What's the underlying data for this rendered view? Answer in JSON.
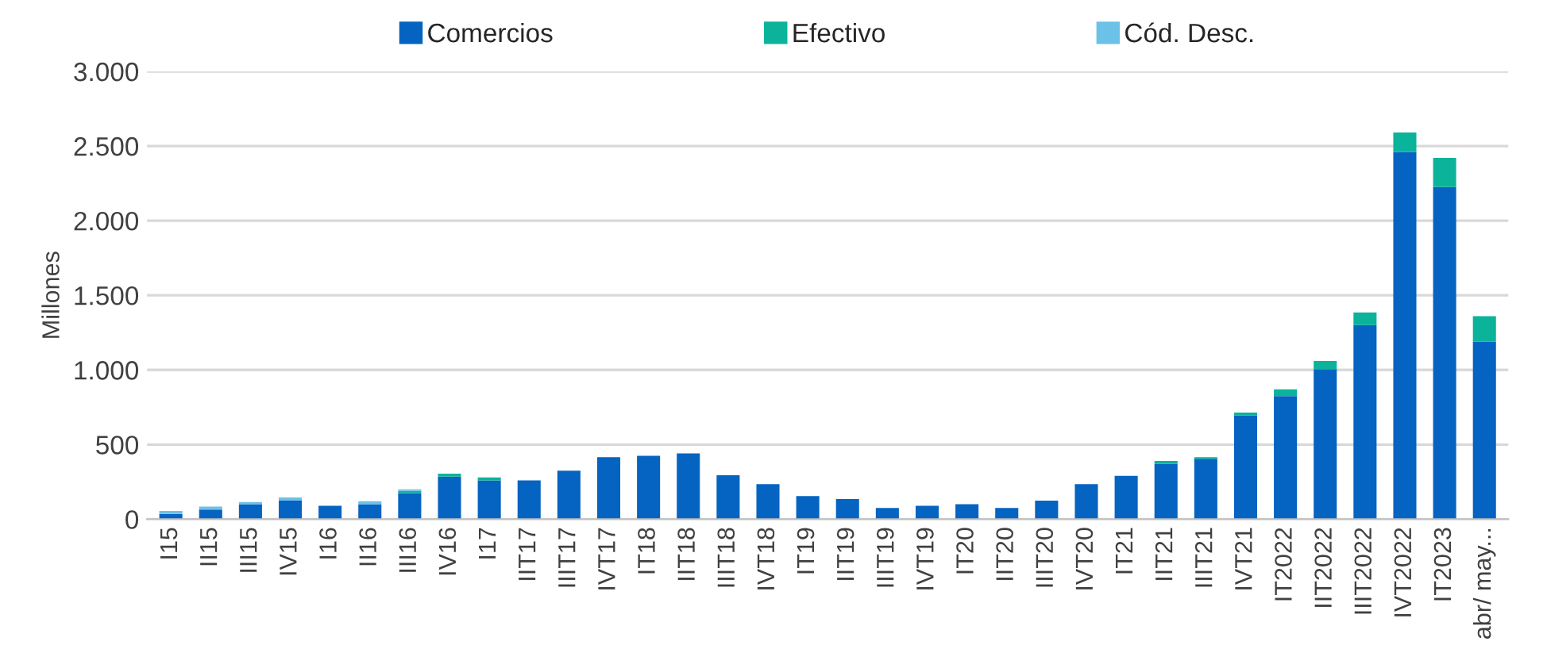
{
  "chart_data": {
    "type": "bar",
    "stacked": true,
    "ylabel": "Millones",
    "categories": [
      "I15",
      "II15",
      "III15",
      "IV15",
      "I16",
      "II16",
      "III16",
      "IV16",
      "I17",
      "IIT17",
      "IIIT17",
      "IVT17",
      "IT18",
      "IIT18",
      "IIIT18",
      "IVT18",
      "IT19",
      "IIT19",
      "IIIT19",
      "IVT19",
      "IT20",
      "IIT20",
      "IIIT20",
      "IVT20",
      "IT21",
      "IIT21",
      "IIIT21",
      "IVT21",
      "IT2022",
      "IIT2022",
      "IIIT2022",
      "IVT2022",
      "IT2023",
      "abr/ may..."
    ],
    "series": [
      {
        "name": "Comercios",
        "color": "#0563c1",
        "values": [
          35,
          65,
          100,
          125,
          90,
          100,
          175,
          285,
          260,
          260,
          325,
          415,
          425,
          440,
          295,
          235,
          155,
          135,
          75,
          90,
          100,
          75,
          125,
          235,
          290,
          370,
          405,
          695,
          825,
          1005,
          1300,
          2460,
          2225,
          1190
        ]
      },
      {
        "name": "Efectivo",
        "color": "#0bb39b",
        "values": [
          null,
          null,
          null,
          null,
          null,
          null,
          15,
          20,
          20,
          null,
          null,
          null,
          null,
          null,
          null,
          null,
          null,
          null,
          null,
          null,
          null,
          null,
          null,
          null,
          null,
          20,
          10,
          20,
          45,
          55,
          85,
          130,
          195,
          170
        ]
      },
      {
        "name": "Cód. Desc.",
        "color": "#6cc1e8",
        "values": [
          20,
          20,
          15,
          20,
          null,
          20,
          10,
          null,
          null,
          null,
          null,
          null,
          null,
          null,
          null,
          null,
          null,
          null,
          null,
          null,
          null,
          null,
          null,
          null,
          null,
          null,
          null,
          null,
          null,
          null,
          null,
          null,
          null,
          null
        ]
      }
    ],
    "ylim": [
      0,
      3000
    ],
    "yticks": [
      0,
      {
        "value": 500,
        "label": "500"
      },
      {
        "value": 1000,
        "label": "1.000"
      },
      {
        "value": 1500,
        "label": "1.500"
      },
      {
        "value": 2000,
        "label": "2.000"
      },
      {
        "value": 2500,
        "label": "2.500"
      },
      {
        "value": 3000,
        "label": "3.000"
      }
    ],
    "grid": "y",
    "legend": "top"
  }
}
